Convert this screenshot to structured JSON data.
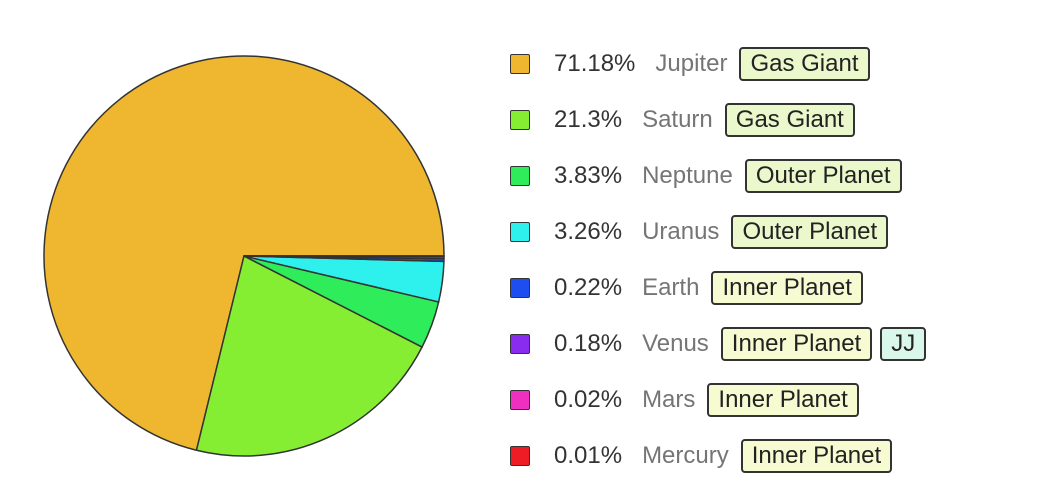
{
  "chart_data": {
    "type": "pie",
    "title": "",
    "slices": [
      {
        "label": "Jupiter",
        "percent_text": "71.18%",
        "value": 71.18,
        "color": "#efb730",
        "tags": [
          {
            "text": "Gas Giant",
            "color": "#eaf8cc"
          }
        ]
      },
      {
        "label": "Saturn",
        "percent_text": "21.3%",
        "value": 21.3,
        "color": "#86ee32",
        "tags": [
          {
            "text": "Gas Giant",
            "color": "#eaf8cc"
          }
        ]
      },
      {
        "label": "Neptune",
        "percent_text": "3.83%",
        "value": 3.83,
        "color": "#2eec5a",
        "tags": [
          {
            "text": "Outer Planet",
            "color": "#eaf8cc"
          }
        ]
      },
      {
        "label": "Uranus",
        "percent_text": "3.26%",
        "value": 3.26,
        "color": "#2ef1ee",
        "tags": [
          {
            "text": "Outer Planet",
            "color": "#eaf8cc"
          }
        ]
      },
      {
        "label": "Earth",
        "percent_text": "0.22%",
        "value": 0.22,
        "color": "#1e4df0",
        "tags": [
          {
            "text": "Inner Planet",
            "color": "#f6fbd1"
          }
        ]
      },
      {
        "label": "Venus",
        "percent_text": "0.18%",
        "value": 0.18,
        "color": "#8a2cf0",
        "tags": [
          {
            "text": "Inner Planet",
            "color": "#f6fbd1"
          },
          {
            "text": "JJ",
            "color": "#d9f7ea"
          }
        ]
      },
      {
        "label": "Mars",
        "percent_text": "0.02%",
        "value": 0.02,
        "color": "#ef2fc0",
        "tags": [
          {
            "text": "Inner Planet",
            "color": "#f6fbd1"
          }
        ]
      },
      {
        "label": "Mercury",
        "percent_text": "0.01%",
        "value": 0.01,
        "color": "#ee1c24",
        "tags": [
          {
            "text": "Inner Planet",
            "color": "#f6fbd1"
          }
        ]
      }
    ],
    "start_angle_deg": 0,
    "direction": "counterclockwise",
    "legend_position": "right",
    "stroke_color": "#333333"
  }
}
